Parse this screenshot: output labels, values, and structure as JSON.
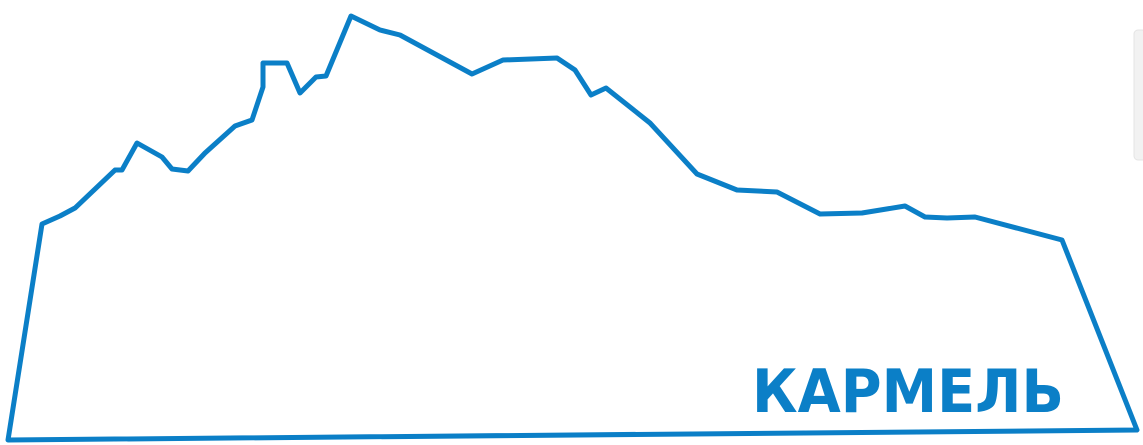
{
  "logo": {
    "text": "КАРМЕЛЬ"
  }
}
